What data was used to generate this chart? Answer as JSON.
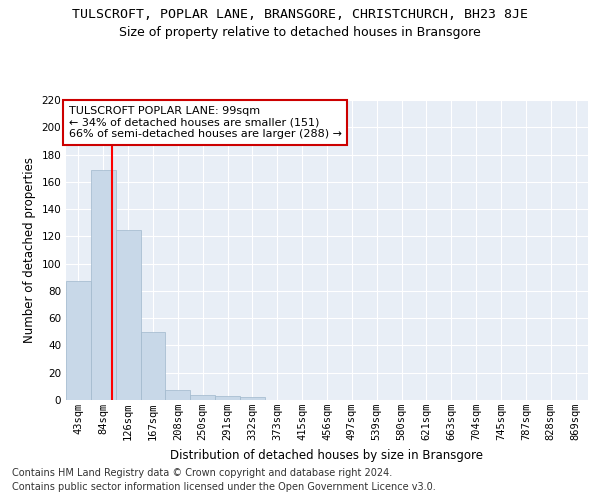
{
  "title": "TULSCROFT, POPLAR LANE, BRANSGORE, CHRISTCHURCH, BH23 8JE",
  "subtitle": "Size of property relative to detached houses in Bransgore",
  "xlabel": "Distribution of detached houses by size in Bransgore",
  "ylabel": "Number of detached properties",
  "footnote1": "Contains HM Land Registry data © Crown copyright and database right 2024.",
  "footnote2": "Contains public sector information licensed under the Open Government Licence v3.0.",
  "annotation_line1": "TULSCROFT POPLAR LANE: 99sqm",
  "annotation_line2": "← 34% of detached houses are smaller (151)",
  "annotation_line3": "66% of semi-detached houses are larger (288) →",
  "bar_labels": [
    "43sqm",
    "84sqm",
    "126sqm",
    "167sqm",
    "208sqm",
    "250sqm",
    "291sqm",
    "332sqm",
    "373sqm",
    "415sqm",
    "456sqm",
    "497sqm",
    "539sqm",
    "580sqm",
    "621sqm",
    "663sqm",
    "704sqm",
    "745sqm",
    "787sqm",
    "828sqm",
    "869sqm"
  ],
  "bar_values": [
    87,
    169,
    125,
    50,
    7,
    4,
    3,
    2,
    0,
    0,
    0,
    0,
    0,
    0,
    0,
    0,
    0,
    0,
    0,
    0,
    0
  ],
  "bar_color": "#c8d8e8",
  "bar_edgecolor": "#a0b8cc",
  "ylim": [
    0,
    220
  ],
  "yticks": [
    0,
    20,
    40,
    60,
    80,
    100,
    120,
    140,
    160,
    180,
    200,
    220
  ],
  "bg_color": "#e8eef6",
  "grid_color": "#ffffff",
  "annotation_box_facecolor": "#ffffff",
  "annotation_box_edgecolor": "#cc0000",
  "title_fontsize": 9.5,
  "subtitle_fontsize": 9,
  "axis_label_fontsize": 8.5,
  "tick_fontsize": 7.5,
  "annotation_fontsize": 8,
  "footnote_fontsize": 7
}
